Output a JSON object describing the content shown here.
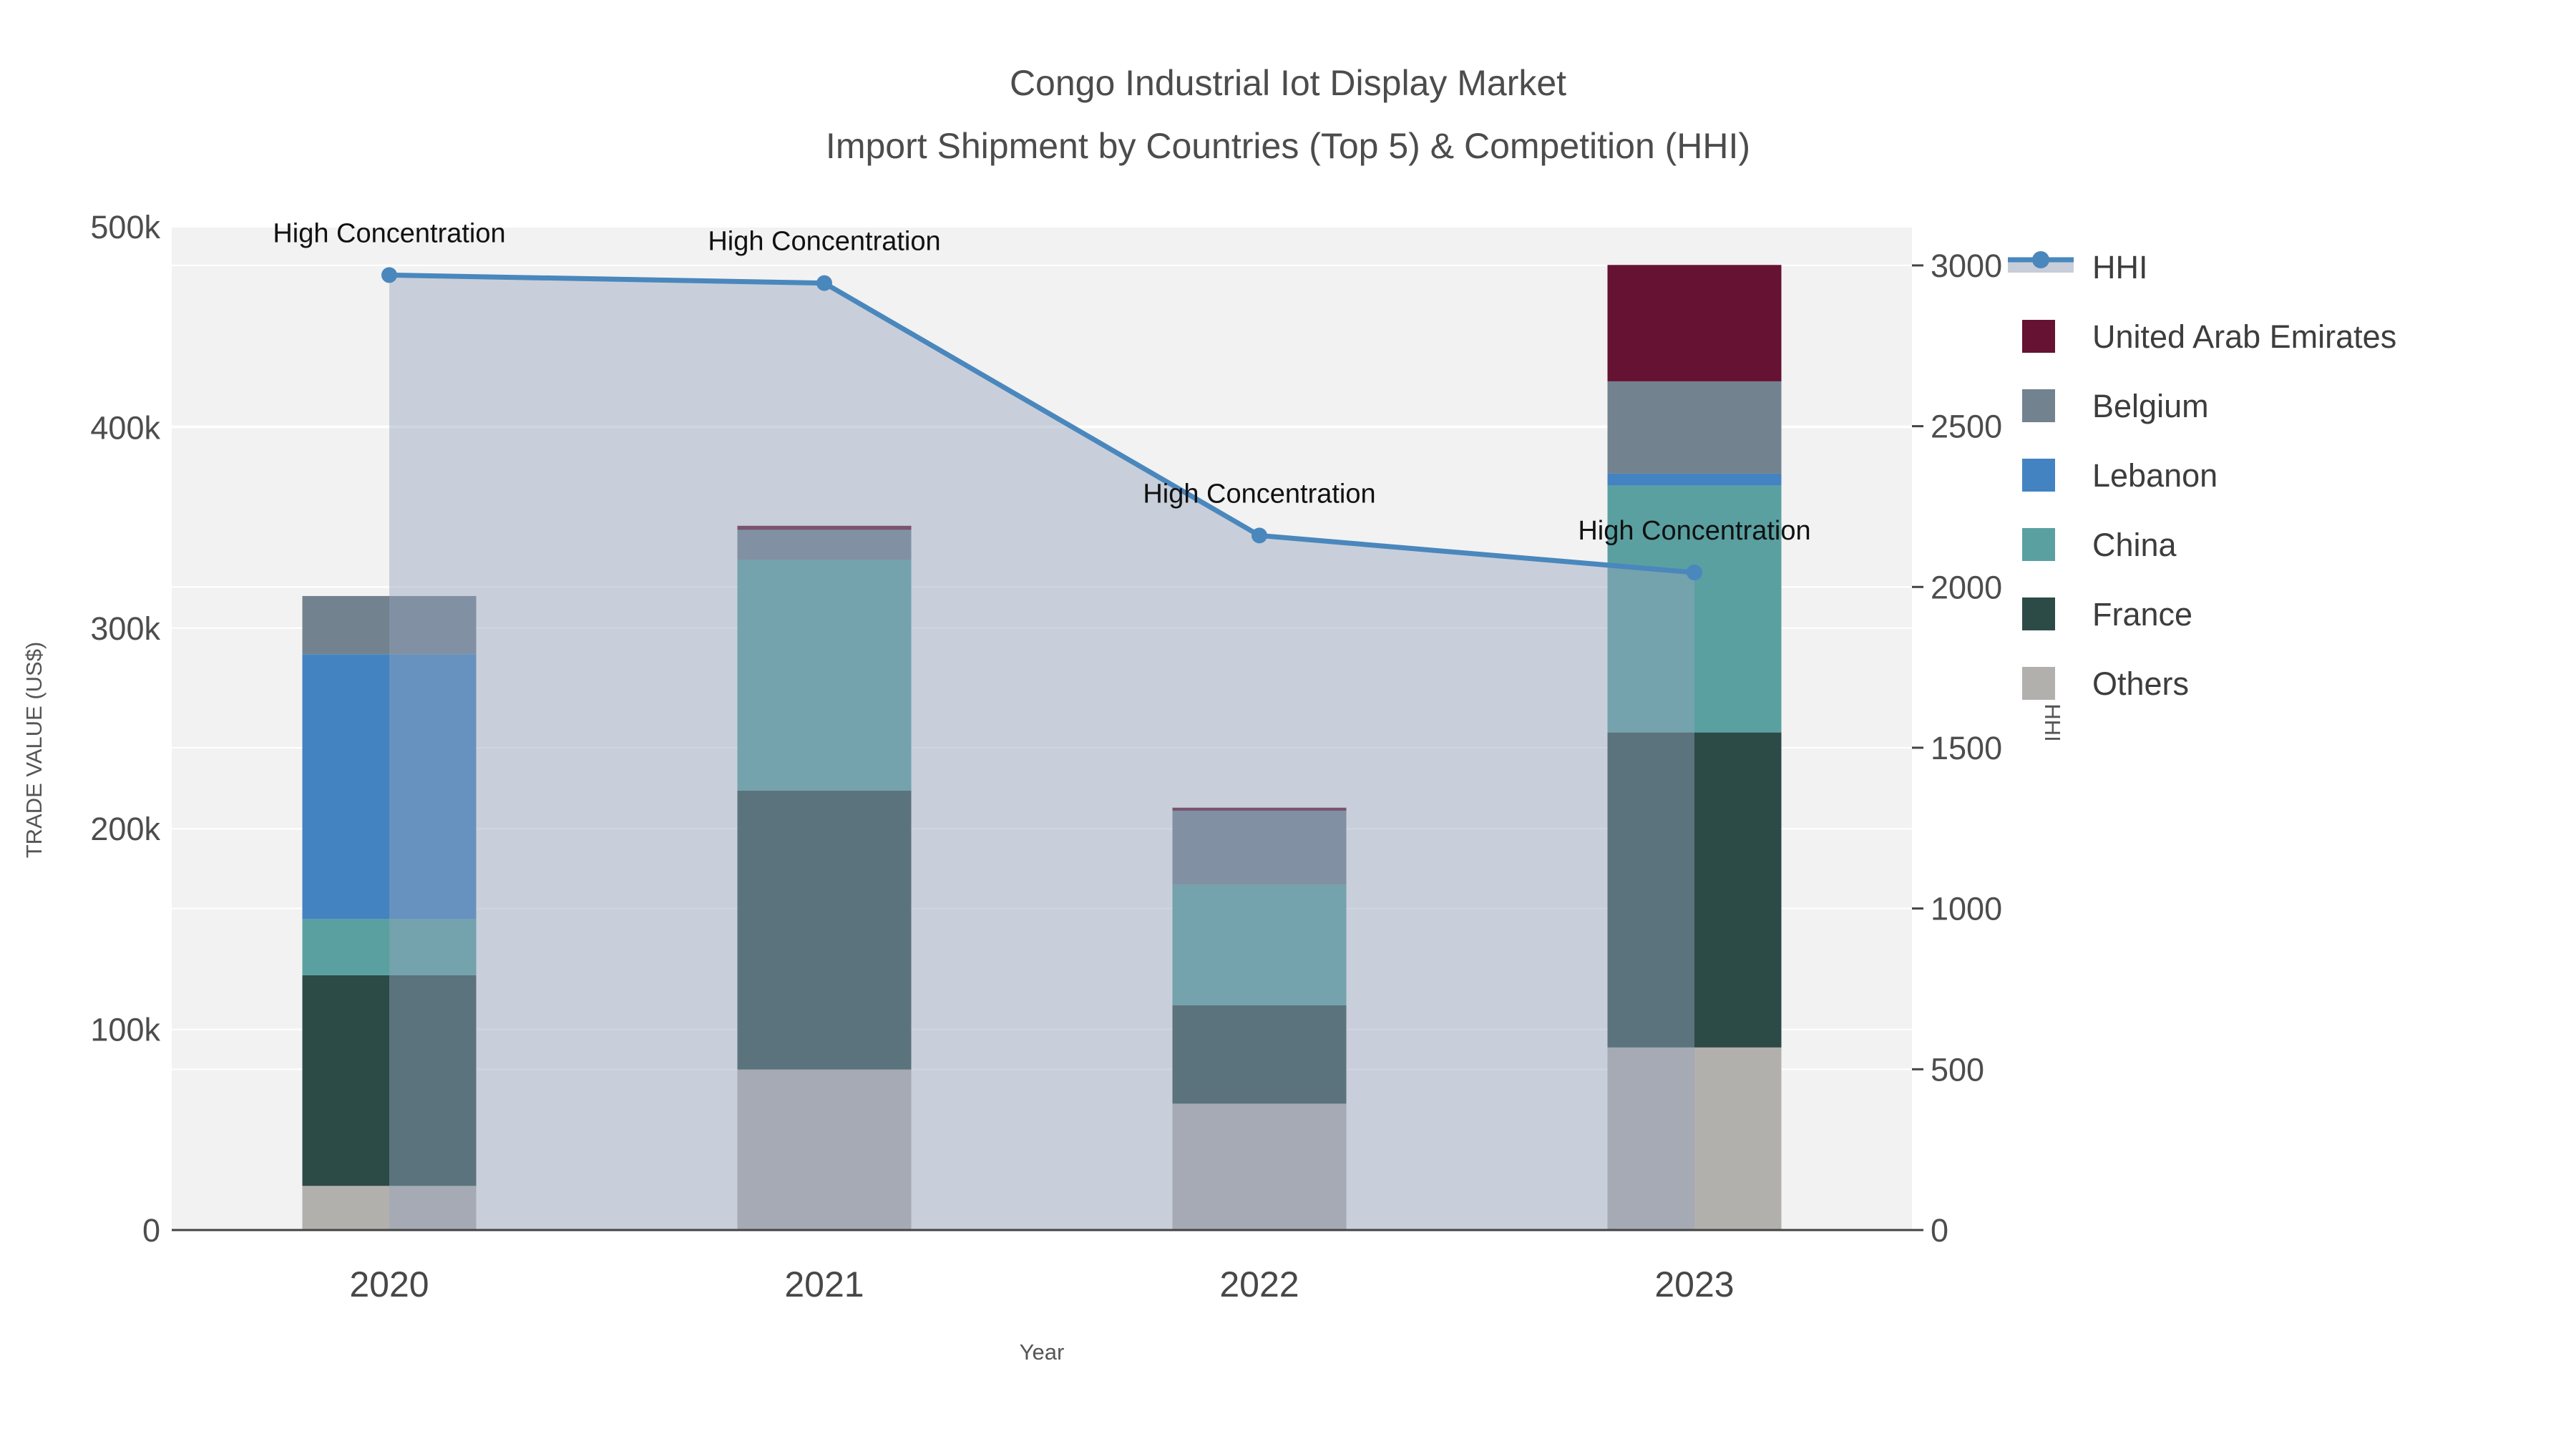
{
  "title": {
    "line1": "Congo Industrial Iot Display Market",
    "line2": "Import Shipment by Countries (Top 5) & Competition (HHI)"
  },
  "axes": {
    "x": {
      "title": "Year",
      "categories": [
        "2020",
        "2021",
        "2022",
        "2023"
      ]
    },
    "y_left": {
      "title": "TRADE VALUE (US$)",
      "tick_labels": [
        "0",
        "100k",
        "200k",
        "300k",
        "400k",
        "500k"
      ],
      "tick_values": [
        0,
        100000,
        200000,
        300000,
        400000,
        500000
      ],
      "range": [
        0,
        500000
      ]
    },
    "y_right": {
      "title": "HHI",
      "tick_labels": [
        "0",
        "500",
        "1000",
        "1500",
        "2000",
        "2500",
        "3000"
      ],
      "tick_values": [
        0,
        500,
        1000,
        1500,
        2000,
        2500,
        3000
      ],
      "range": [
        0,
        3120
      ]
    }
  },
  "chart_data": {
    "type": "stacked-bar+line",
    "categories": [
      "2020",
      "2021",
      "2022",
      "2023"
    ],
    "xlabel": "Year",
    "ylabel_left": "TRADE VALUE (US$)",
    "ylabel_right": "HHI",
    "grid": true,
    "stack_order_bottom_to_top": [
      "Others",
      "France",
      "China",
      "Lebanon",
      "Belgium",
      "United Arab Emirates"
    ],
    "series": [
      {
        "name": "Others",
        "color": "#b2b0ad",
        "values": [
          22000,
          80000,
          63000,
          91000
        ]
      },
      {
        "name": "France",
        "color": "#2c4b47",
        "values": [
          105000,
          139000,
          49000,
          157000
        ]
      },
      {
        "name": "China",
        "color": "#5aa0a1",
        "values": [
          28000,
          115000,
          60000,
          123000
        ]
      },
      {
        "name": "Lebanon",
        "color": "#4383c1",
        "values": [
          132000,
          0,
          0,
          6000
        ]
      },
      {
        "name": "Belgium",
        "color": "#72828f",
        "values": [
          29000,
          15000,
          37000,
          46000
        ]
      },
      {
        "name": "United Arab Emirates",
        "color": "#651233",
        "values": [
          0,
          2000,
          1500,
          58000
        ]
      }
    ],
    "line_series": {
      "name": "HHI",
      "axis": "right",
      "color": "#4a87bd",
      "area_fill": "rgba(148,163,188,0.45)",
      "values": [
        2970,
        2945,
        2160,
        2045
      ]
    },
    "annotations": [
      {
        "category": "2020",
        "text": "High Concentration"
      },
      {
        "category": "2021",
        "text": "High Concentration"
      },
      {
        "category": "2022",
        "text": "High Concentration"
      },
      {
        "category": "2023",
        "text": "High Concentration"
      }
    ]
  },
  "legend": {
    "position": "right",
    "items": [
      {
        "label": "HHI",
        "marker": "line-area",
        "color": "#4a87bd",
        "band_color": "#c7cdd9"
      },
      {
        "label": "United Arab Emirates",
        "marker": "square",
        "color": "#651233"
      },
      {
        "label": "Belgium",
        "marker": "square",
        "color": "#72828f"
      },
      {
        "label": "Lebanon",
        "marker": "square",
        "color": "#4383c1"
      },
      {
        "label": "China",
        "marker": "square",
        "color": "#5aa0a1"
      },
      {
        "label": "France",
        "marker": "square",
        "color": "#2c4b47"
      },
      {
        "label": "Others",
        "marker": "square",
        "color": "#b2b0ad"
      }
    ]
  },
  "colors": {
    "figure_bg": "#ffffff",
    "plot_bg": "#f2f2f2",
    "grid": "#ffffff",
    "axis_line": "#444444",
    "tick_text": "#4d4d4d",
    "title_text": "#4c4c4c",
    "annotation_text": "#111111"
  }
}
